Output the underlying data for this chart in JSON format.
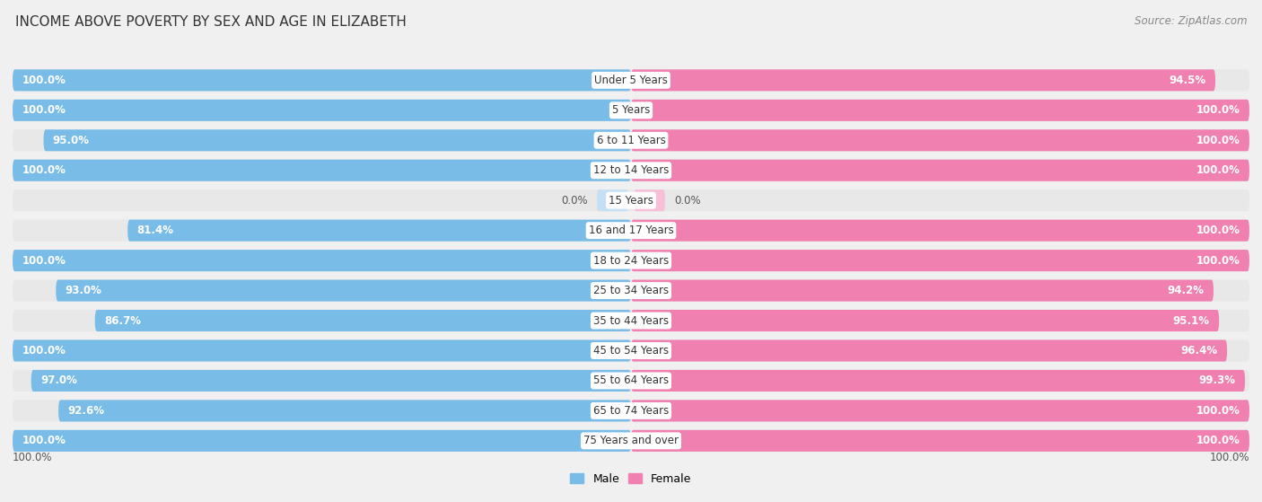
{
  "title": "INCOME ABOVE POVERTY BY SEX AND AGE IN ELIZABETH",
  "source": "Source: ZipAtlas.com",
  "categories": [
    "Under 5 Years",
    "5 Years",
    "6 to 11 Years",
    "12 to 14 Years",
    "15 Years",
    "16 and 17 Years",
    "18 to 24 Years",
    "25 to 34 Years",
    "35 to 44 Years",
    "45 to 54 Years",
    "55 to 64 Years",
    "65 to 74 Years",
    "75 Years and over"
  ],
  "male_values": [
    100.0,
    100.0,
    95.0,
    100.0,
    0.0,
    81.4,
    100.0,
    93.0,
    86.7,
    100.0,
    97.0,
    92.6,
    100.0
  ],
  "female_values": [
    94.5,
    100.0,
    100.0,
    100.0,
    0.0,
    100.0,
    100.0,
    94.2,
    95.1,
    96.4,
    99.3,
    100.0,
    100.0
  ],
  "male_color": "#7abce8",
  "female_color": "#f080b0",
  "male_color_light": "#c5dff5",
  "female_color_light": "#f8c0d8",
  "male_label": "Male",
  "female_label": "Female",
  "background_color": "#f0f0f0",
  "row_bg_color": "#e8e8e8",
  "title_fontsize": 11,
  "label_fontsize": 9,
  "source_fontsize": 8.5,
  "value_fontsize": 8.5,
  "category_fontsize": 8.5
}
